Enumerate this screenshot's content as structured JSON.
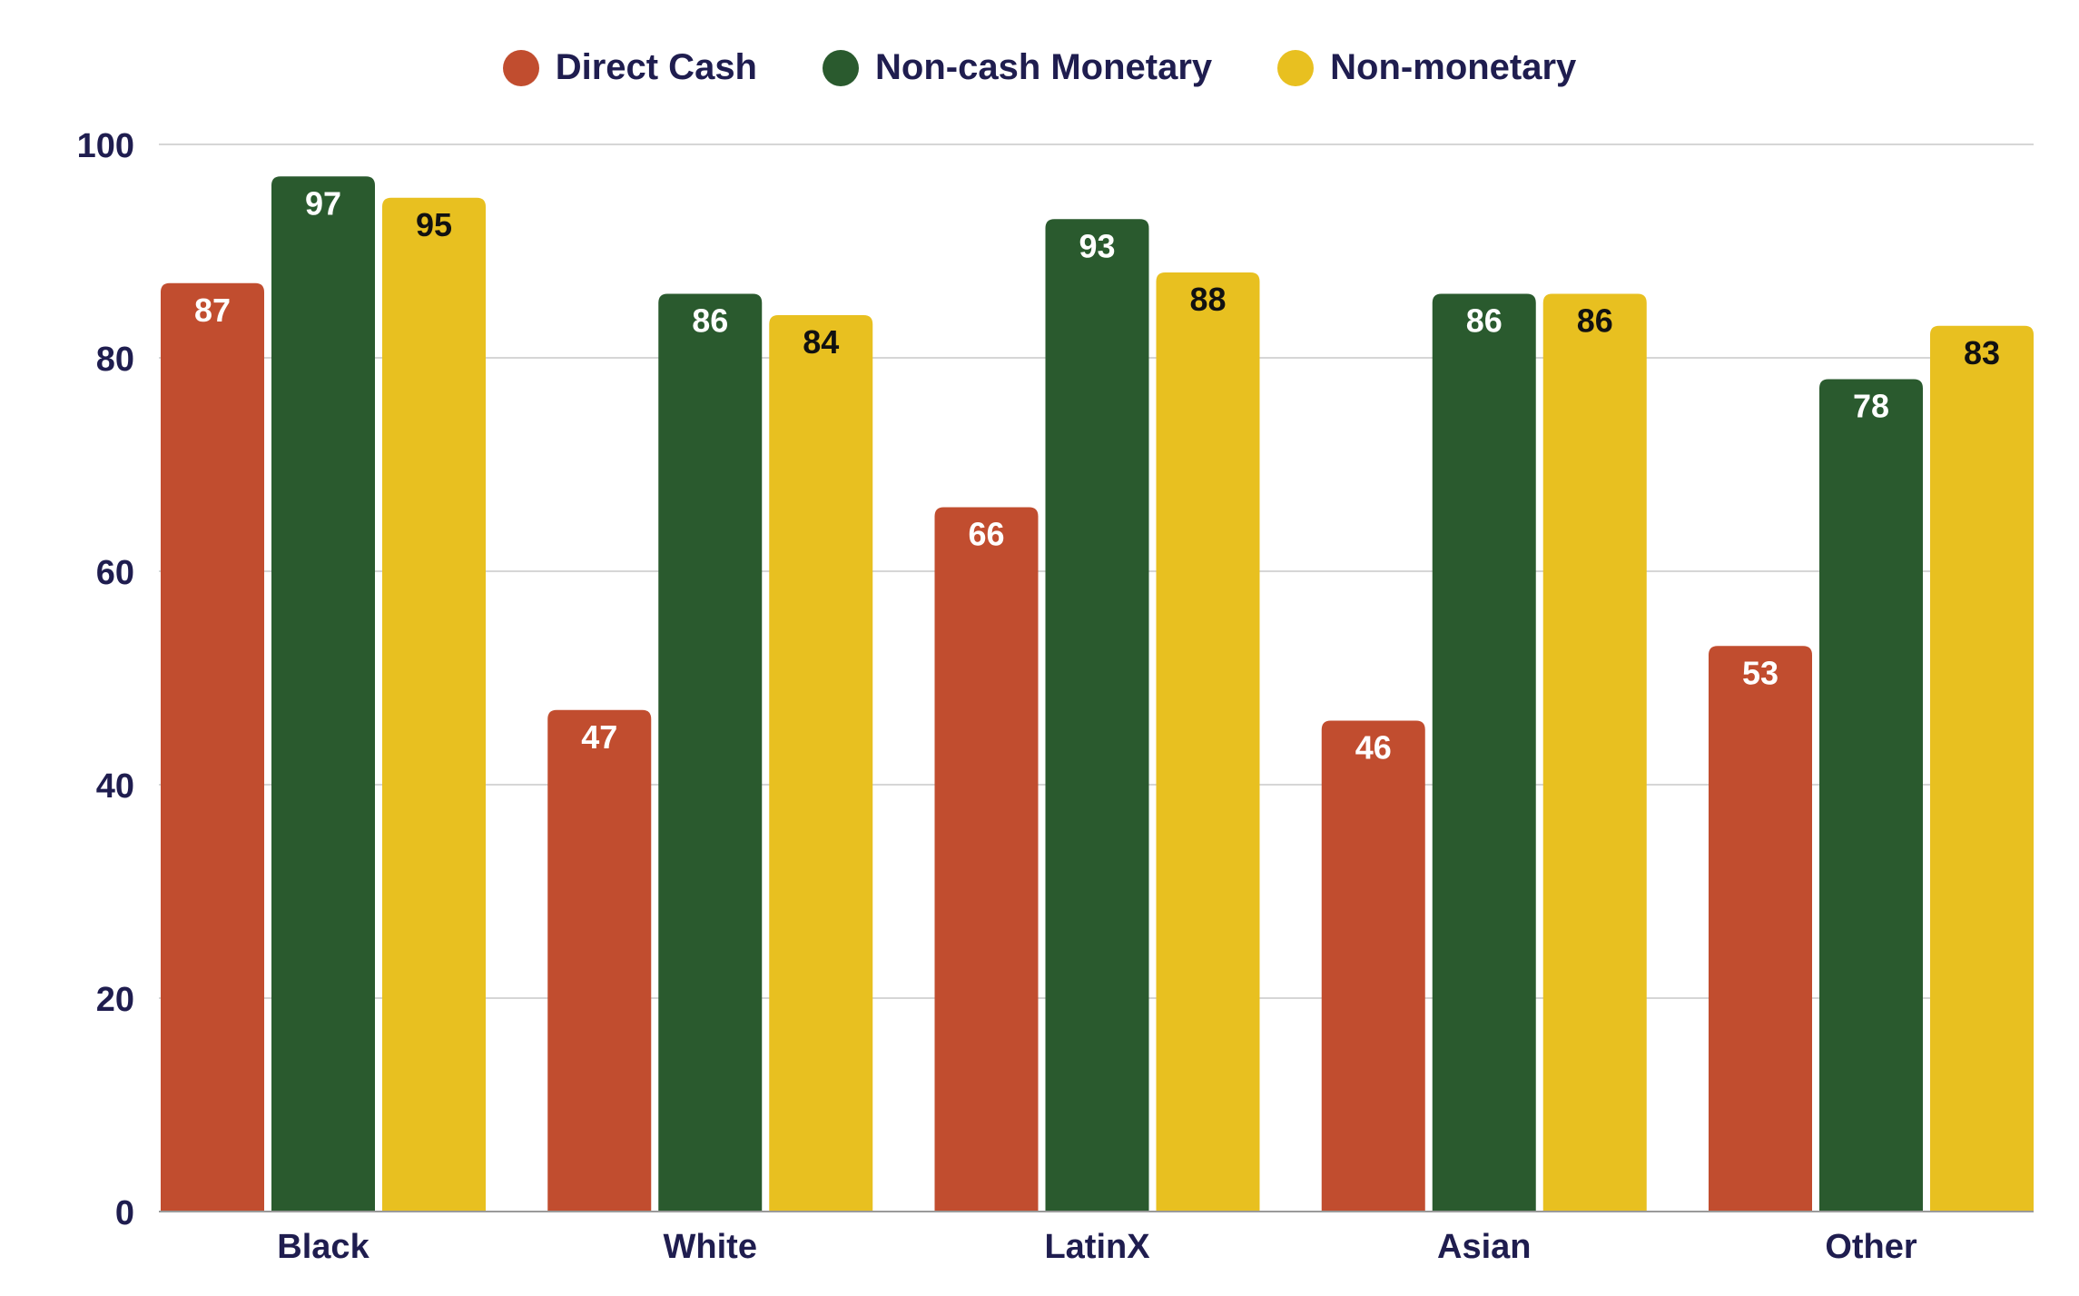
{
  "chart_data": {
    "type": "bar",
    "categories": [
      "Black",
      "White",
      "LatinX",
      "Asian",
      "Other"
    ],
    "series": [
      {
        "name": "Direct Cash",
        "color": "#c14d2f",
        "label_color": "#ffffff",
        "values": [
          87,
          47,
          66,
          46,
          53
        ]
      },
      {
        "name": "Non-cash Monetary",
        "color": "#2a5a2e",
        "label_color": "#ffffff",
        "values": [
          97,
          86,
          93,
          86,
          78
        ]
      },
      {
        "name": "Non-monetary",
        "color": "#e8c020",
        "label_color": "#111111",
        "values": [
          95,
          84,
          88,
          86,
          83
        ]
      }
    ],
    "ylim": [
      0,
      100
    ],
    "yticks": [
      0,
      20,
      40,
      60,
      80,
      100
    ],
    "grid": true,
    "legend_position": "top-center",
    "title": "",
    "xlabel": "",
    "ylabel": ""
  },
  "legend": {
    "items": [
      {
        "label": "Direct Cash",
        "color": "#c14d2f"
      },
      {
        "label": "Non-cash Monetary",
        "color": "#2a5a2e"
      },
      {
        "label": "Non-monetary",
        "color": "#e8c020"
      }
    ]
  },
  "colors": {
    "axis_text": "#1f1d4f",
    "grid": "#d6d6d6",
    "baseline": "#9a9a9a"
  }
}
